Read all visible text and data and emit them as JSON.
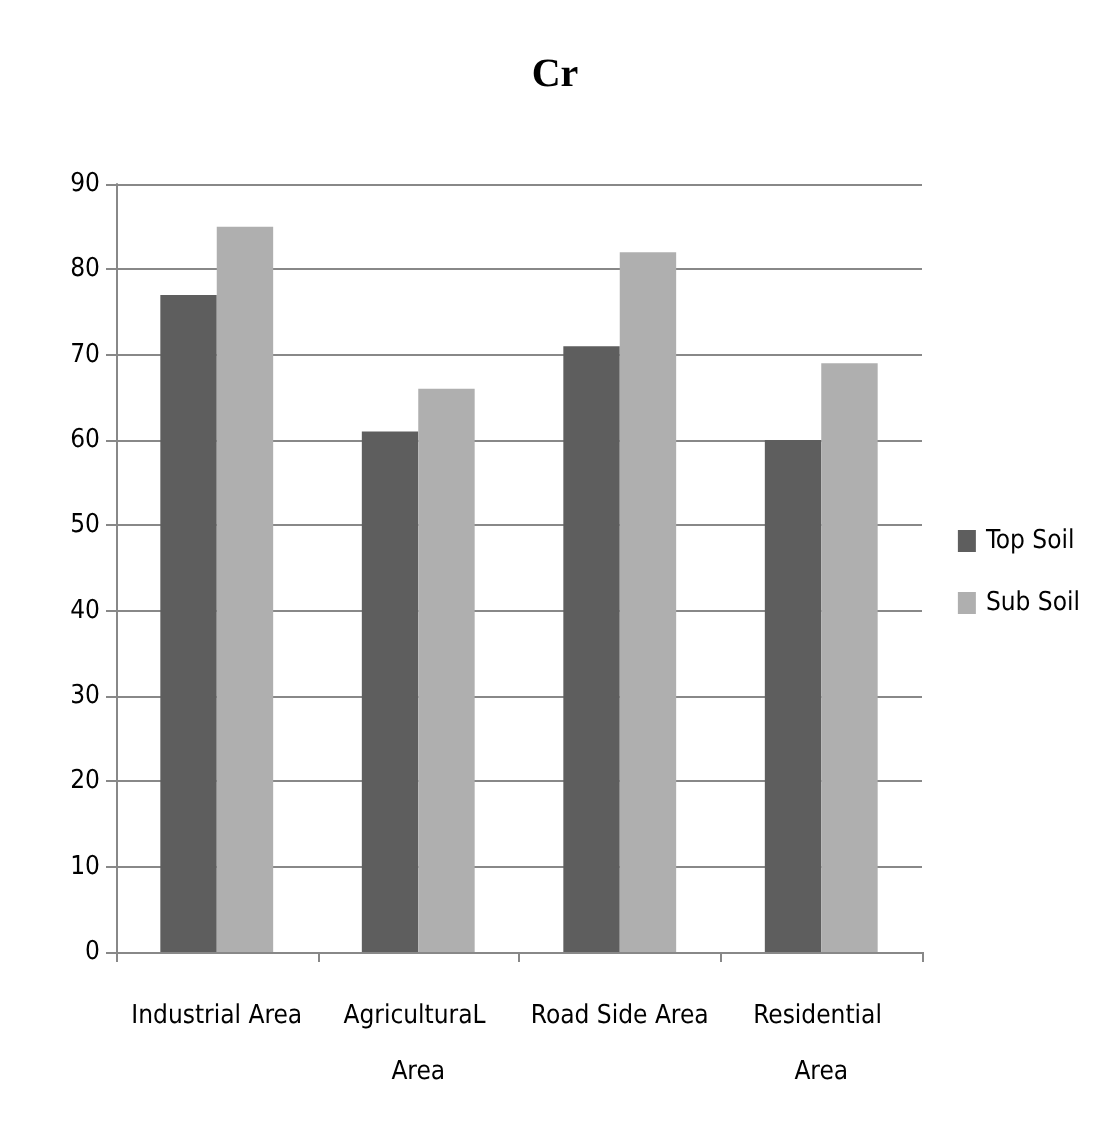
{
  "chart_data": {
    "type": "bar",
    "title": "Cr",
    "categories": [
      "Industrial Area",
      "AgriculturaL Area",
      "Road Side Area",
      "Residential Area"
    ],
    "series": [
      {
        "name": "Top Soil",
        "color": "#5e5e5e",
        "values": [
          77,
          61,
          71,
          60
        ]
      },
      {
        "name": "Sub Soil",
        "color": "#afafaf",
        "values": [
          85,
          66,
          82,
          69
        ]
      }
    ],
    "ylim": [
      0,
      90
    ],
    "yticks": [
      0,
      10,
      20,
      30,
      40,
      50,
      60,
      70,
      80,
      90
    ],
    "grid": "y",
    "legend": "right"
  }
}
